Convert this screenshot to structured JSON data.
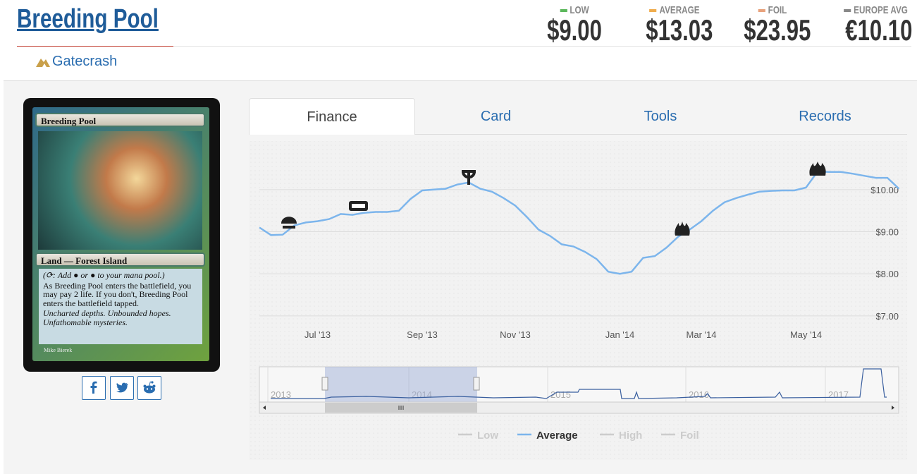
{
  "header": {
    "title": "Breeding Pool",
    "set": "Gatecrash"
  },
  "prices": [
    {
      "label": "LOW",
      "value": "$9.00",
      "color": "#5cb85c"
    },
    {
      "label": "AVERAGE",
      "value": "$13.03",
      "color": "#f0ad4e"
    },
    {
      "label": "FOIL",
      "value": "$23.95",
      "color": "#e8a27c"
    },
    {
      "label": "EUROPE AVG",
      "value": "€10.10",
      "color": "#888888"
    }
  ],
  "card": {
    "name": "Breeding Pool",
    "type_line": "Land — Forest Island",
    "reminder": "(⟳: Add ● or ● to your mana pool.)",
    "rules": "As Breeding Pool enters the battlefield, you may pay 2 life. If you don't, Breeding Pool enters the battlefield tapped.",
    "flavor": "Uncharted depths. Unbounded hopes. Unfathomable mysteries.",
    "artist": "Mike Bierek"
  },
  "tabs": [
    "Finance",
    "Card",
    "Tools",
    "Records"
  ],
  "chart_data": {
    "type": "line",
    "categories": [
      null,
      null,
      null,
      null,
      null,
      "Jul '13",
      null,
      null,
      null,
      null,
      null,
      null,
      null,
      null,
      "Sep '13",
      null,
      null,
      null,
      null,
      null,
      null,
      null,
      "Nov '13",
      null,
      null,
      null,
      null,
      null,
      null,
      null,
      null,
      "Jan '14",
      null,
      null,
      null,
      null,
      null,
      null,
      "Mar '14",
      null,
      null,
      null,
      null,
      null,
      null,
      null,
      null,
      "May '14",
      null,
      null,
      null,
      null,
      null,
      null,
      null,
      null
    ],
    "series": [
      {
        "name": "Low",
        "visible": false
      },
      {
        "name": "Average",
        "visible": true,
        "color": "#7cb5ec",
        "values": [
          9.1,
          8.92,
          8.93,
          9.15,
          9.22,
          9.25,
          9.3,
          9.42,
          9.4,
          9.45,
          9.47,
          9.47,
          9.5,
          9.78,
          9.98,
          10.0,
          10.02,
          10.12,
          10.17,
          10.02,
          9.95,
          9.8,
          9.62,
          9.35,
          9.05,
          8.9,
          8.7,
          8.65,
          8.52,
          8.35,
          8.05,
          8.0,
          8.05,
          8.38,
          8.42,
          8.62,
          8.88,
          9.05,
          9.25,
          9.5,
          9.7,
          9.8,
          9.88,
          9.95,
          9.97,
          9.98,
          9.98,
          10.05,
          10.43,
          10.42,
          10.42,
          10.38,
          10.33,
          10.28,
          10.28,
          10.02
        ]
      },
      {
        "name": "High",
        "visible": false
      },
      {
        "name": "Foil",
        "visible": false
      }
    ],
    "ylim": [
      6.88,
      11.07
    ],
    "yticks": [
      {
        "value": 7,
        "label": "$7.00"
      },
      {
        "value": 8,
        "label": "$8.00"
      },
      {
        "value": 9,
        "label": "$9.00"
      },
      {
        "value": 10,
        "label": "$10.00"
      }
    ],
    "grid": true
  },
  "navigator": {
    "years": [
      "2013",
      "2014",
      "2015",
      "2016",
      "2017"
    ]
  }
}
